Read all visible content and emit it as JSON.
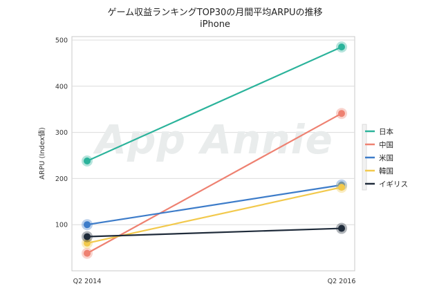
{
  "chart_data": {
    "type": "line",
    "title": "ゲーム収益ランキングTOP30の月間平均ARPUの推移",
    "subtitle": "iPhone",
    "ylabel": "ARPU (Index値)",
    "xlabel": "",
    "categories": [
      "Q2 2014",
      "Q2 2016"
    ],
    "ylim": [
      0,
      500
    ],
    "yticks": [
      100,
      200,
      300,
      400,
      500
    ],
    "grid": true,
    "legend_position": "right",
    "watermark": "App Annie",
    "series": [
      {
        "name": "日本",
        "color": "#2bb39b",
        "values": [
          238,
          485
        ]
      },
      {
        "name": "中国",
        "color": "#ee8171",
        "values": [
          38,
          341
        ]
      },
      {
        "name": "米国",
        "color": "#3d7cc9",
        "values": [
          100,
          186
        ]
      },
      {
        "name": "韓国",
        "color": "#f2c94c",
        "values": [
          60,
          181
        ]
      },
      {
        "name": "イギリス",
        "color": "#1f2b3a",
        "values": [
          74,
          92
        ]
      }
    ]
  }
}
